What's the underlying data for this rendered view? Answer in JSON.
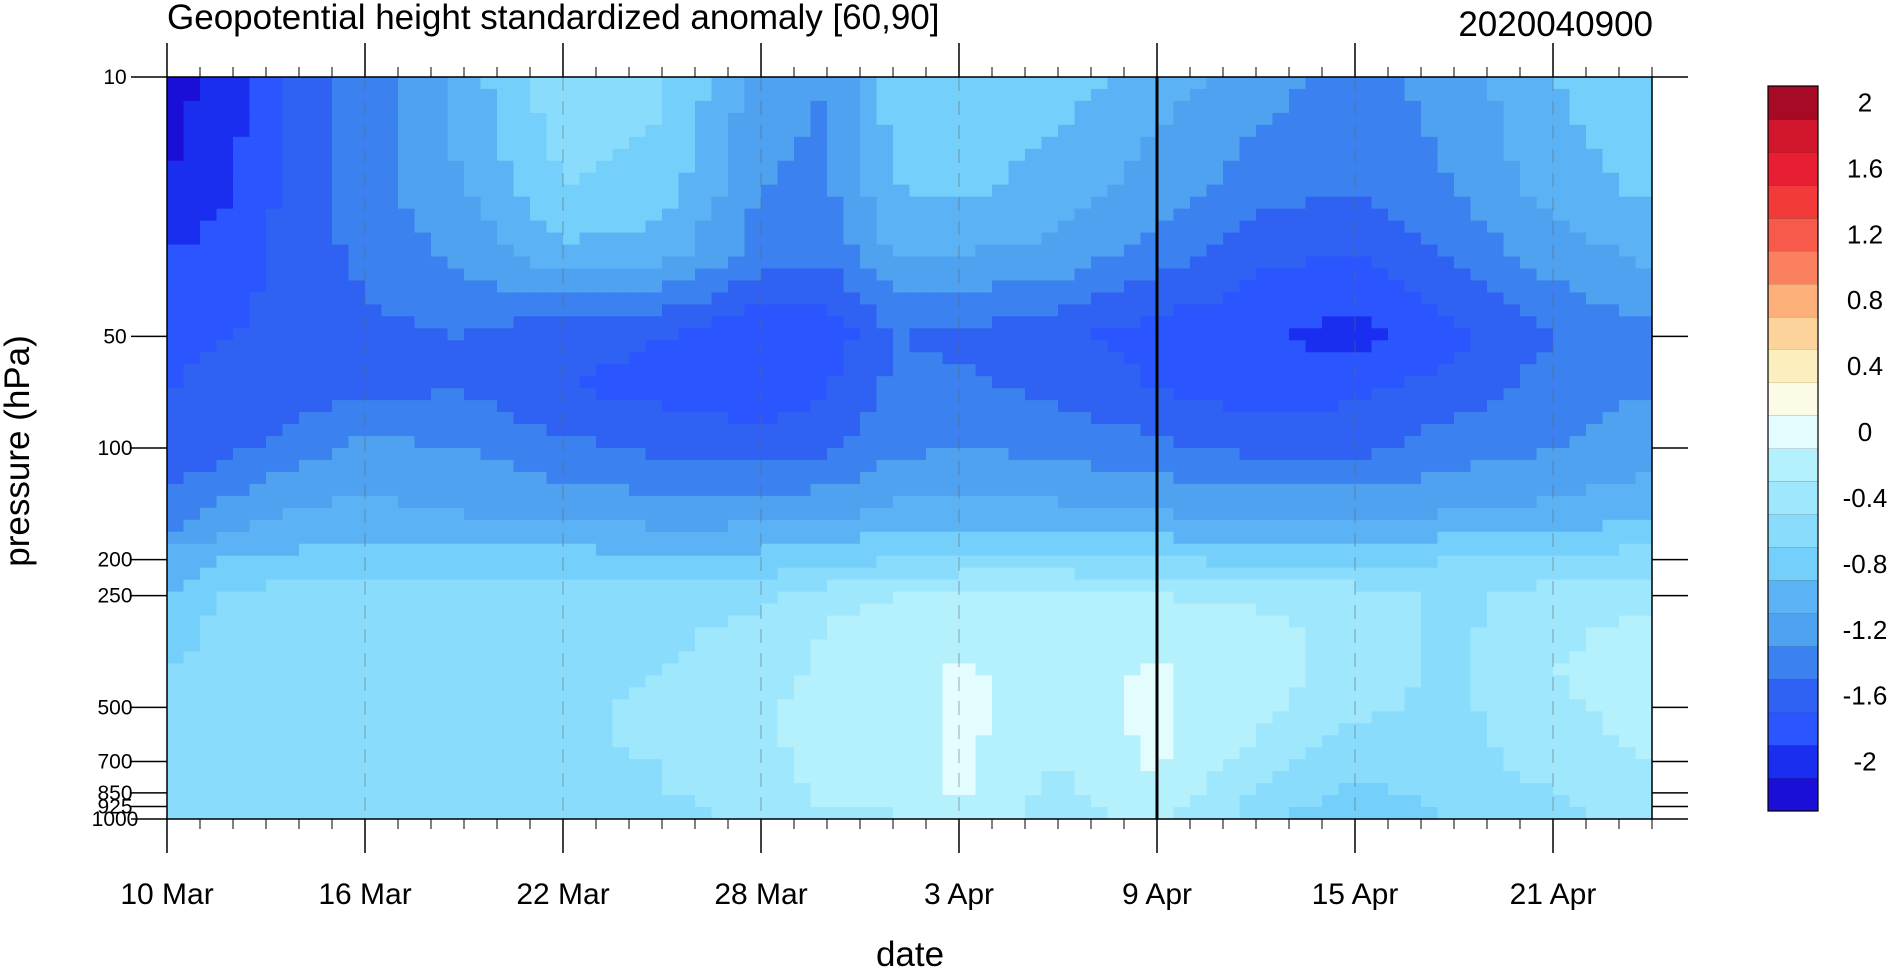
{
  "chart_data": {
    "type": "contour",
    "title": "Geopotential height standardized anomaly [60,90]",
    "date_code": "2020040900",
    "xlabel": "date",
    "ylabel": "pressure (hPa)",
    "x_tick_labels": [
      "10 Mar",
      "16 Mar",
      "22 Mar",
      "28 Mar",
      "3 Apr",
      "9 Apr",
      "15 Apr",
      "21 Apr"
    ],
    "x_ticks_days": [
      0,
      6,
      12,
      18,
      24,
      30,
      36,
      42
    ],
    "x_range_days": [
      0,
      45
    ],
    "y_scale": "log",
    "y_ticks": [
      {
        "p": 10,
        "label": "10"
      },
      {
        "p": 50,
        "label": "50"
      },
      {
        "p": 100,
        "label": "100"
      },
      {
        "p": 200,
        "label": "200"
      },
      {
        "p": 250,
        "label": "250"
      },
      {
        "p": 500,
        "label": "500"
      },
      {
        "p": 700,
        "label": "700"
      },
      {
        "p": 850,
        "label": "850"
      },
      {
        "p": 925,
        "label": "925"
      },
      {
        "p": 1000,
        "label": "1000"
      }
    ],
    "y_range": [
      10,
      1000
    ],
    "grid_dashed_verticals": true,
    "current_date_marker": "9 Apr",
    "pressure_levels": [
      10,
      20,
      30,
      50,
      70,
      100,
      150,
      200,
      250,
      300,
      400,
      500,
      600,
      700,
      850,
      925,
      1000
    ],
    "dates_days": [
      0,
      2,
      4,
      6,
      9,
      12,
      15,
      18,
      20,
      22,
      24,
      27,
      30,
      33,
      36,
      39,
      42,
      45
    ],
    "values": [
      [
        -2.1,
        -1.9,
        -1.5,
        -1.3,
        -0.9,
        -0.45,
        -0.55,
        -1.1,
        -1.2,
        -0.7,
        -0.65,
        -0.7,
        -0.9,
        -1.1,
        -1.3,
        -1.1,
        -0.8,
        -0.6
      ],
      [
        -2.0,
        -1.8,
        -1.5,
        -1.3,
        -1.0,
        -0.6,
        -0.7,
        -1.2,
        -1.25,
        -0.8,
        -0.75,
        -0.9,
        -1.1,
        -1.3,
        -1.4,
        -1.2,
        -0.9,
        -0.75
      ],
      [
        -1.8,
        -1.7,
        -1.5,
        -1.35,
        -1.15,
        -0.85,
        -0.9,
        -1.3,
        -1.35,
        -1.0,
        -1.0,
        -1.05,
        -1.3,
        -1.55,
        -1.6,
        -1.35,
        -1.1,
        -0.95
      ],
      [
        -1.65,
        -1.6,
        -1.5,
        -1.45,
        -1.4,
        -1.55,
        -1.6,
        -1.8,
        -1.75,
        -1.4,
        -1.45,
        -1.55,
        -1.7,
        -1.75,
        -1.9,
        -1.65,
        -1.4,
        -1.25
      ],
      [
        -1.6,
        -1.55,
        -1.5,
        -1.45,
        -1.4,
        -1.6,
        -1.65,
        -1.75,
        -1.6,
        -1.35,
        -1.35,
        -1.45,
        -1.6,
        -1.7,
        -1.65,
        -1.5,
        -1.3,
        -1.2
      ],
      [
        -1.55,
        -1.45,
        -1.3,
        -1.15,
        -1.2,
        -1.35,
        -1.45,
        -1.5,
        -1.45,
        -1.25,
        -1.2,
        -1.25,
        -1.35,
        -1.45,
        -1.45,
        -1.3,
        -1.2,
        -1.1
      ],
      [
        -1.35,
        -1.1,
        -0.95,
        -0.95,
        -1.0,
        -1.05,
        -1.1,
        -1.1,
        -1.05,
        -0.95,
        -0.9,
        -0.95,
        -1.0,
        -1.05,
        -1.05,
        -1.0,
        -0.95,
        -0.85
      ],
      [
        -0.9,
        -0.8,
        -0.75,
        -0.7,
        -0.7,
        -0.72,
        -0.75,
        -0.72,
        -0.68,
        -0.6,
        -0.55,
        -0.55,
        -0.6,
        -0.65,
        -0.65,
        -0.6,
        -0.55,
        -0.5
      ],
      [
        -0.8,
        -0.55,
        -0.5,
        -0.5,
        -0.5,
        -0.5,
        -0.5,
        -0.45,
        -0.3,
        -0.2,
        -0.15,
        -0.15,
        -0.2,
        -0.25,
        -0.3,
        -0.45,
        -0.3,
        -0.3
      ],
      [
        -0.75,
        -0.5,
        -0.45,
        -0.45,
        -0.45,
        -0.45,
        -0.45,
        -0.35,
        -0.2,
        -0.1,
        -0.1,
        -0.1,
        -0.1,
        -0.15,
        -0.25,
        -0.45,
        -0.25,
        -0.15
      ],
      [
        -0.6,
        -0.45,
        -0.4,
        -0.45,
        -0.45,
        -0.45,
        -0.4,
        -0.3,
        -0.15,
        -0.05,
        0.02,
        -0.05,
        0.02,
        -0.1,
        -0.3,
        -0.45,
        -0.2,
        -0.1
      ],
      [
        -0.55,
        -0.4,
        -0.45,
        -0.5,
        -0.5,
        -0.45,
        -0.35,
        -0.25,
        -0.1,
        -0.1,
        0.05,
        -0.08,
        0.05,
        -0.15,
        -0.35,
        -0.45,
        -0.25,
        -0.1
      ],
      [
        -0.5,
        -0.4,
        -0.45,
        -0.5,
        -0.5,
        -0.45,
        -0.35,
        -0.25,
        -0.1,
        -0.15,
        0.05,
        -0.15,
        0.05,
        -0.2,
        -0.45,
        -0.45,
        -0.3,
        -0.15
      ],
      [
        -0.5,
        -0.45,
        -0.45,
        -0.5,
        -0.5,
        -0.45,
        -0.4,
        -0.3,
        -0.1,
        -0.15,
        0.05,
        -0.2,
        0.03,
        -0.3,
        -0.55,
        -0.45,
        -0.35,
        -0.2
      ],
      [
        -0.5,
        -0.45,
        -0.45,
        -0.5,
        -0.5,
        -0.45,
        -0.4,
        -0.3,
        -0.15,
        -0.2,
        0.03,
        -0.25,
        -0.05,
        -0.4,
        -0.65,
        -0.5,
        -0.4,
        -0.25
      ],
      [
        -0.5,
        -0.45,
        -0.45,
        -0.55,
        -0.5,
        -0.5,
        -0.45,
        -0.35,
        -0.2,
        -0.2,
        0.02,
        -0.3,
        -0.1,
        -0.45,
        -0.75,
        -0.55,
        -0.45,
        -0.3
      ],
      [
        -0.5,
        -0.45,
        -0.45,
        -0.55,
        -0.5,
        -0.5,
        -0.45,
        -0.35,
        -0.25,
        -0.25,
        0.0,
        -0.3,
        -0.15,
        -0.5,
        -0.8,
        -0.6,
        -0.45,
        -0.35
      ]
    ],
    "colorbar": {
      "levels": [
        -2.2,
        -2.0,
        -1.8,
        -1.6,
        -1.4,
        -1.2,
        -1.0,
        -0.8,
        -0.6,
        -0.4,
        -0.2,
        0,
        0.2,
        0.4,
        0.6,
        0.8,
        1.0,
        1.2,
        1.4,
        1.6,
        1.8,
        2.0,
        2.2
      ],
      "colors": [
        "#1a0fd6",
        "#1a2ef0",
        "#2b55ff",
        "#2f62f2",
        "#3b82f0",
        "#4ea2f0",
        "#5bb3f5",
        "#74cffb",
        "#8adcfc",
        "#9fe7fd",
        "#b5f0fd",
        "#e3fcfd",
        "#fcfbe6",
        "#fcefbd",
        "#fcd39a",
        "#fdb07a",
        "#fb8060",
        "#f75a4a",
        "#f23a3a",
        "#e81e33",
        "#d0152d",
        "#a60a25"
      ],
      "labels": [
        "-2",
        "-1.6",
        "-1.2",
        "-0.8",
        "-0.4",
        "0",
        "0.4",
        "0.8",
        "1.2",
        "1.6",
        "2"
      ],
      "label_values": [
        -2.0,
        -1.6,
        -1.2,
        -0.8,
        -0.4,
        0,
        0.4,
        0.8,
        1.2,
        1.6,
        2.0
      ]
    }
  }
}
